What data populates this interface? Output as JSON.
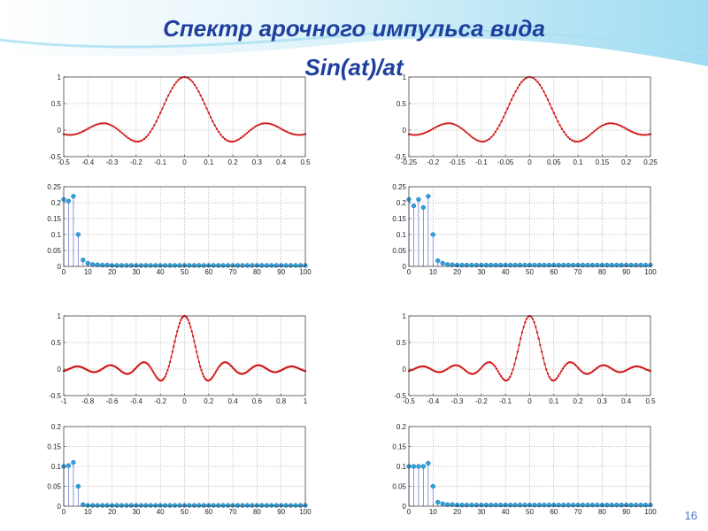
{
  "slide": {
    "title": "Спектр арочного импульса вида Sin(at)/at",
    "page_number": "16"
  },
  "colors": {
    "title": "#1f3f9e",
    "signal": "#d01818",
    "stem": "#6f7fd0",
    "stem_marker": "#29a7df",
    "page_number": "#4a78c9"
  },
  "chart_data": [
    {
      "type": "line",
      "subplot": "top-left signal",
      "function": "sinc",
      "a": 23,
      "x_range": [
        -0.5,
        0.5
      ],
      "points": 121,
      "xlim": [
        -0.5,
        0.5
      ],
      "ylim": [
        -0.5,
        1
      ],
      "xticks": [
        -0.5,
        -0.4,
        -0.3,
        -0.2,
        -0.1,
        0,
        0.1,
        0.2,
        0.3,
        0.4,
        0.5
      ],
      "xtick_labels": [
        "-0.5",
        "-0.4",
        "-0.3",
        "-0.2",
        "-0.1",
        "0",
        "0.1",
        "0.2",
        "0.3",
        "0.4",
        "0.5"
      ],
      "yticks": [
        -0.5,
        0,
        0.5,
        1
      ],
      "ytick_labels": [
        "-0.5",
        "0",
        "0.5",
        "1"
      ],
      "grid": true,
      "color": "#d01818"
    },
    {
      "type": "stem",
      "subplot": "top-left spectrum",
      "x": [
        0,
        2,
        4,
        6,
        8,
        10,
        12,
        14,
        16,
        18,
        20,
        22,
        24,
        26,
        28,
        30,
        32,
        34,
        36,
        38,
        40,
        42,
        44,
        46,
        48,
        50,
        52,
        54,
        56,
        58,
        60,
        62,
        64,
        66,
        68,
        70,
        72,
        74,
        76,
        78,
        80,
        82,
        84,
        86,
        88,
        90,
        92,
        94,
        96,
        98,
        100
      ],
      "values": [
        0.21,
        0.205,
        0.22,
        0.1,
        0.02,
        0.01,
        0.006,
        0.005,
        0.004,
        0.004,
        0.003,
        0.003,
        0.003,
        0.003,
        0.003,
        0.003,
        0.003,
        0.003,
        0.003,
        0.003,
        0.003,
        0.003,
        0.003,
        0.003,
        0.003,
        0.003,
        0.003,
        0.003,
        0.003,
        0.003,
        0.003,
        0.003,
        0.003,
        0.003,
        0.003,
        0.003,
        0.003,
        0.003,
        0.003,
        0.003,
        0.003,
        0.003,
        0.003,
        0.003,
        0.003,
        0.003,
        0.003,
        0.003,
        0.003,
        0.003,
        0.003
      ],
      "xlim": [
        0,
        100
      ],
      "ylim": [
        0,
        0.25
      ],
      "xticks": [
        0,
        10,
        20,
        30,
        40,
        50,
        60,
        70,
        80,
        90,
        100
      ],
      "xtick_labels": [
        "0",
        "10",
        "20",
        "30",
        "40",
        "50",
        "60",
        "70",
        "80",
        "90",
        "100"
      ],
      "yticks": [
        0,
        0.05,
        0.1,
        0.15,
        0.2,
        0.25
      ],
      "ytick_labels": [
        "0",
        "0.05",
        "0.1",
        "0.15",
        "0.2",
        "0.25"
      ],
      "grid": true,
      "color": "#6f7fd0"
    },
    {
      "type": "line",
      "subplot": "top-right signal",
      "function": "sinc",
      "a": 46,
      "x_range": [
        -0.25,
        0.25
      ],
      "points": 121,
      "xlim": [
        -0.25,
        0.25
      ],
      "ylim": [
        -0.5,
        1
      ],
      "xticks": [
        -0.25,
        -0.2,
        -0.15,
        -0.1,
        -0.05,
        0,
        0.05,
        0.1,
        0.15,
        0.2,
        0.25
      ],
      "xtick_labels": [
        "-0.25",
        "-0.2",
        "-0.15",
        "-0.1",
        "-0.05",
        "0",
        "0.05",
        "0.1",
        "0.15",
        "0.2",
        "0.25"
      ],
      "yticks": [
        -0.5,
        0,
        0.5,
        1
      ],
      "ytick_labels": [
        "-0.5",
        "0",
        "0.5",
        "1"
      ],
      "grid": true,
      "color": "#d01818"
    },
    {
      "type": "stem",
      "subplot": "top-right spectrum",
      "x": [
        0,
        2,
        4,
        6,
        8,
        10,
        12,
        14,
        16,
        18,
        20,
        22,
        24,
        26,
        28,
        30,
        32,
        34,
        36,
        38,
        40,
        42,
        44,
        46,
        48,
        50,
        52,
        54,
        56,
        58,
        60,
        62,
        64,
        66,
        68,
        70,
        72,
        74,
        76,
        78,
        80,
        82,
        84,
        86,
        88,
        90,
        92,
        94,
        96,
        98,
        100
      ],
      "values": [
        0.21,
        0.19,
        0.21,
        0.185,
        0.22,
        0.1,
        0.018,
        0.01,
        0.006,
        0.005,
        0.004,
        0.004,
        0.004,
        0.004,
        0.004,
        0.004,
        0.004,
        0.004,
        0.004,
        0.004,
        0.004,
        0.004,
        0.004,
        0.004,
        0.004,
        0.004,
        0.004,
        0.004,
        0.004,
        0.004,
        0.004,
        0.004,
        0.004,
        0.004,
        0.004,
        0.004,
        0.004,
        0.004,
        0.004,
        0.004,
        0.004,
        0.004,
        0.004,
        0.004,
        0.004,
        0.004,
        0.004,
        0.004,
        0.004,
        0.004,
        0.004
      ],
      "xlim": [
        0,
        100
      ],
      "ylim": [
        0,
        0.25
      ],
      "xticks": [
        0,
        10,
        20,
        30,
        40,
        50,
        60,
        70,
        80,
        90,
        100
      ],
      "xtick_labels": [
        "0",
        "10",
        "20",
        "30",
        "40",
        "50",
        "60",
        "70",
        "80",
        "90",
        "100"
      ],
      "yticks": [
        0,
        0.05,
        0.1,
        0.15,
        0.2,
        0.25
      ],
      "ytick_labels": [
        "0",
        "0.05",
        "0.1",
        "0.15",
        "0.2",
        "0.25"
      ],
      "grid": true,
      "color": "#6f7fd0"
    },
    {
      "type": "line",
      "subplot": "bottom-left signal",
      "function": "sinc",
      "a": 23,
      "x_range": [
        -1,
        1
      ],
      "points": 201,
      "xlim": [
        -1,
        1
      ],
      "ylim": [
        -0.5,
        1
      ],
      "xticks": [
        -1,
        -0.8,
        -0.6,
        -0.4,
        -0.2,
        0,
        0.2,
        0.4,
        0.6,
        0.8,
        1
      ],
      "xtick_labels": [
        "-1",
        "-0.8",
        "-0.6",
        "-0.4",
        "-0.2",
        "0",
        "0.2",
        "0.4",
        "0.6",
        "0.8",
        "1"
      ],
      "yticks": [
        -0.5,
        0,
        0.5,
        1
      ],
      "ytick_labels": [
        "-0.5",
        "0",
        "0.5",
        "1"
      ],
      "grid": true,
      "color": "#d01818"
    },
    {
      "type": "stem",
      "subplot": "bottom-left spectrum",
      "x": [
        0,
        2,
        4,
        6,
        8,
        10,
        12,
        14,
        16,
        18,
        20,
        22,
        24,
        26,
        28,
        30,
        32,
        34,
        36,
        38,
        40,
        42,
        44,
        46,
        48,
        50,
        52,
        54,
        56,
        58,
        60,
        62,
        64,
        66,
        68,
        70,
        72,
        74,
        76,
        78,
        80,
        82,
        84,
        86,
        88,
        90,
        92,
        94,
        96,
        98,
        100
      ],
      "values": [
        0.1,
        0.102,
        0.11,
        0.05,
        0.004,
        0.002,
        0.002,
        0.002,
        0.002,
        0.002,
        0.002,
        0.002,
        0.002,
        0.002,
        0.002,
        0.002,
        0.002,
        0.002,
        0.002,
        0.002,
        0.002,
        0.002,
        0.002,
        0.002,
        0.002,
        0.002,
        0.002,
        0.002,
        0.002,
        0.002,
        0.002,
        0.002,
        0.002,
        0.002,
        0.002,
        0.002,
        0.002,
        0.002,
        0.002,
        0.002,
        0.002,
        0.002,
        0.002,
        0.002,
        0.002,
        0.002,
        0.002,
        0.002,
        0.002,
        0.002,
        0.002
      ],
      "xlim": [
        0,
        100
      ],
      "ylim": [
        0,
        0.2
      ],
      "xticks": [
        0,
        10,
        20,
        30,
        40,
        50,
        60,
        70,
        80,
        90,
        100
      ],
      "xtick_labels": [
        "0",
        "10",
        "20",
        "30",
        "40",
        "50",
        "60",
        "70",
        "80",
        "90",
        "100"
      ],
      "yticks": [
        0,
        0.05,
        0.1,
        0.15,
        0.2
      ],
      "ytick_labels": [
        "0",
        "0.05",
        "0.1",
        "0.15",
        "0.2"
      ],
      "grid": true,
      "color": "#6f7fd0"
    },
    {
      "type": "line",
      "subplot": "bottom-right signal",
      "function": "sinc",
      "a": 46,
      "x_range": [
        -0.5,
        0.5
      ],
      "points": 161,
      "xlim": [
        -0.5,
        0.5
      ],
      "ylim": [
        -0.5,
        1
      ],
      "xticks": [
        -0.5,
        -0.4,
        -0.3,
        -0.2,
        -0.1,
        0,
        0.1,
        0.2,
        0.3,
        0.4,
        0.5
      ],
      "xtick_labels": [
        "-0.5",
        "-0.4",
        "-0.3",
        "-0.2",
        "-0.1",
        "0",
        "0.1",
        "0.2",
        "0.3",
        "0.4",
        "0.5"
      ],
      "yticks": [
        -0.5,
        0,
        0.5,
        1
      ],
      "ytick_labels": [
        "-0.5",
        "0",
        "0.5",
        "1"
      ],
      "grid": true,
      "color": "#d01818"
    },
    {
      "type": "stem",
      "subplot": "bottom-right spectrum",
      "x": [
        0,
        2,
        4,
        6,
        8,
        10,
        12,
        14,
        16,
        18,
        20,
        22,
        24,
        26,
        28,
        30,
        32,
        34,
        36,
        38,
        40,
        42,
        44,
        46,
        48,
        50,
        52,
        54,
        56,
        58,
        60,
        62,
        64,
        66,
        68,
        70,
        72,
        74,
        76,
        78,
        80,
        82,
        84,
        86,
        88,
        90,
        92,
        94,
        96,
        98,
        100
      ],
      "values": [
        0.1,
        0.1,
        0.1,
        0.1,
        0.108,
        0.05,
        0.01,
        0.006,
        0.004,
        0.004,
        0.003,
        0.003,
        0.003,
        0.003,
        0.003,
        0.003,
        0.003,
        0.003,
        0.003,
        0.003,
        0.003,
        0.003,
        0.003,
        0.003,
        0.003,
        0.003,
        0.003,
        0.003,
        0.003,
        0.003,
        0.003,
        0.003,
        0.003,
        0.003,
        0.003,
        0.003,
        0.003,
        0.003,
        0.003,
        0.003,
        0.003,
        0.003,
        0.003,
        0.003,
        0.003,
        0.003,
        0.003,
        0.003,
        0.003,
        0.003,
        0.003
      ],
      "xlim": [
        0,
        100
      ],
      "ylim": [
        0,
        0.2
      ],
      "xticks": [
        0,
        10,
        20,
        30,
        40,
        50,
        60,
        70,
        80,
        90,
        100
      ],
      "xtick_labels": [
        "0",
        "10",
        "20",
        "30",
        "40",
        "50",
        "60",
        "70",
        "80",
        "90",
        "100"
      ],
      "yticks": [
        0,
        0.05,
        0.1,
        0.15,
        0.2
      ],
      "ytick_labels": [
        "0",
        "0.05",
        "0.1",
        "0.15",
        "0.2"
      ],
      "grid": true,
      "color": "#6f7fd0"
    }
  ]
}
